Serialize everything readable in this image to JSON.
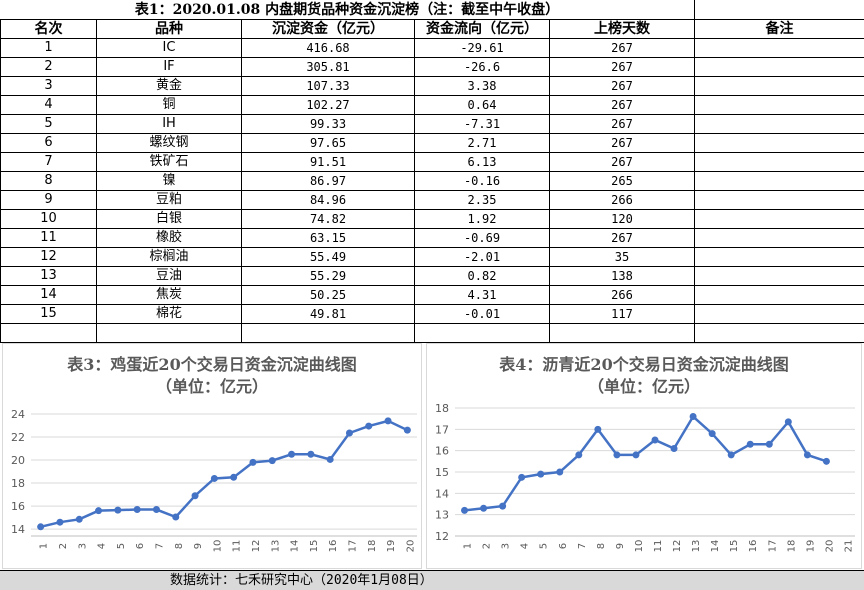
{
  "table": {
    "title": "表1：2020.01.08 内盘期货品种资金沉淀榜（注：截至中午收盘）",
    "headers": [
      "名次",
      "品种",
      "沉淀资金（亿元）",
      "资金流向（亿元）",
      "上榜天数",
      "备注"
    ],
    "rows": [
      [
        "1",
        "IC",
        "416.68",
        "-29.61",
        "267",
        ""
      ],
      [
        "2",
        "IF",
        "305.81",
        "-26.6",
        "267",
        ""
      ],
      [
        "3",
        "黄金",
        "107.33",
        "3.38",
        "267",
        ""
      ],
      [
        "4",
        "铜",
        "102.27",
        "0.64",
        "267",
        ""
      ],
      [
        "5",
        "IH",
        "99.33",
        "-7.31",
        "267",
        ""
      ],
      [
        "6",
        "螺纹钢",
        "97.65",
        "2.71",
        "267",
        ""
      ],
      [
        "7",
        "铁矿石",
        "91.51",
        "6.13",
        "267",
        ""
      ],
      [
        "8",
        "镍",
        "86.97",
        "-0.16",
        "265",
        ""
      ],
      [
        "9",
        "豆粕",
        "84.96",
        "2.35",
        "266",
        ""
      ],
      [
        "10",
        "白银",
        "74.82",
        "1.92",
        "120",
        ""
      ],
      [
        "11",
        "橡胶",
        "63.15",
        "-0.69",
        "267",
        ""
      ],
      [
        "12",
        "棕榈油",
        "55.49",
        "-2.01",
        "35",
        ""
      ],
      [
        "13",
        "豆油",
        "55.29",
        "0.82",
        "138",
        ""
      ],
      [
        "14",
        "焦炭",
        "50.25",
        "4.31",
        "266",
        ""
      ],
      [
        "15",
        "棉花",
        "49.81",
        "-0.01",
        "117",
        ""
      ],
      [
        "",
        "",
        "",
        "",
        "",
        ""
      ]
    ]
  },
  "chart_data": [
    {
      "type": "line",
      "title": "表3：鸡蛋近20个交易日资金沉淀曲线图",
      "subtitle": "（单位：亿元）",
      "x": [
        1,
        2,
        3,
        4,
        5,
        6,
        7,
        8,
        9,
        10,
        11,
        12,
        13,
        14,
        15,
        16,
        17,
        18,
        19,
        20
      ],
      "values": [
        14.2,
        14.6,
        14.85,
        15.6,
        15.65,
        15.7,
        15.7,
        15.05,
        16.9,
        18.4,
        18.5,
        19.8,
        19.95,
        20.5,
        20.5,
        20.05,
        22.35,
        22.95,
        23.4,
        22.6
      ],
      "yticks": [
        14,
        16,
        18,
        20,
        22,
        24
      ],
      "ylim": [
        13.4,
        24
      ],
      "color": "#4472c4",
      "grid": true
    },
    {
      "type": "line",
      "title": "表4：沥青近20个交易日资金沉淀曲线图",
      "subtitle": "（单位：亿元）",
      "x": [
        1,
        2,
        3,
        4,
        5,
        6,
        7,
        8,
        9,
        10,
        11,
        12,
        13,
        14,
        15,
        16,
        17,
        18,
        19,
        20
      ],
      "xticks": [
        1,
        2,
        3,
        4,
        5,
        6,
        7,
        8,
        9,
        10,
        11,
        12,
        13,
        14,
        15,
        16,
        17,
        18,
        19,
        20,
        21
      ],
      "values": [
        13.2,
        13.3,
        13.4,
        14.75,
        14.9,
        15.0,
        15.8,
        17.0,
        15.8,
        15.8,
        16.5,
        16.1,
        17.6,
        16.8,
        15.8,
        16.3,
        16.3,
        17.35,
        15.8,
        15.5
      ],
      "yticks": [
        12,
        13,
        14,
        15,
        16,
        17,
        18
      ],
      "ylim": [
        12,
        18
      ],
      "color": "#4472c4",
      "grid": true
    }
  ],
  "footer": "数据统计：七禾研究中心（2020年1月08日）"
}
